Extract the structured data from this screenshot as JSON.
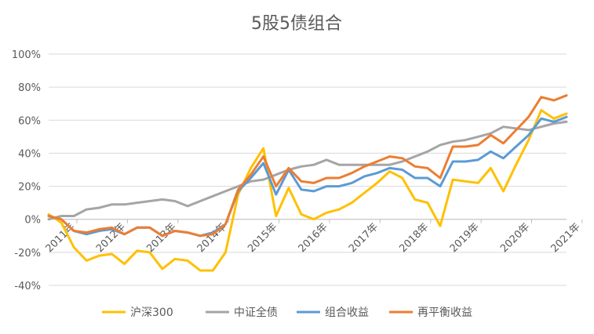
{
  "chart_data": {
    "type": "line",
    "title": "5股5债组合",
    "xlabel": "",
    "ylabel": "",
    "ylim": [
      -40,
      100
    ],
    "yticks": [
      -40,
      -20,
      0,
      20,
      40,
      60,
      80,
      100
    ],
    "ytick_labels": [
      "-40%",
      "-20%",
      "0%",
      "20%",
      "40%",
      "60%",
      "80%",
      "100%"
    ],
    "xtick_labels": [
      "2011年",
      "2012年",
      "2013年",
      "2014年",
      "2015年",
      "2016年",
      "2017年",
      "2018年",
      "2019年",
      "2020年",
      "2021年"
    ],
    "grid": "horizontal",
    "legend_position": "bottom",
    "colors": {
      "沪深300": "#FFC000",
      "中证全债": "#A5A5A5",
      "组合收益": "#5B9BD5",
      "再平衡收益": "#ED7D31"
    },
    "series": [
      {
        "name": "沪深300",
        "color": "#FFC000",
        "values": [
          3,
          -2,
          -17,
          -25,
          -22,
          -21,
          -27,
          -19,
          -20,
          -30,
          -24,
          -25,
          -31,
          -31,
          -20,
          15,
          31,
          43,
          2,
          19,
          3,
          0,
          4,
          6,
          10,
          16,
          22,
          29,
          25,
          12,
          10,
          -4,
          24,
          23,
          22,
          31,
          17,
          33,
          48,
          66,
          61,
          64
        ]
      },
      {
        "name": "中证全债",
        "color": "#A5A5A5",
        "values": [
          0,
          2,
          2,
          6,
          7,
          9,
          9,
          10,
          11,
          12,
          11,
          8,
          11,
          14,
          17,
          20,
          23,
          24,
          27,
          30,
          32,
          33,
          36,
          33,
          33,
          33,
          33,
          33,
          35,
          38,
          41,
          45,
          47,
          48,
          50,
          52,
          56,
          55,
          54,
          56,
          58,
          59
        ]
      },
      {
        "name": "组合收益",
        "color": "#5B9BD5",
        "values": [
          2,
          0,
          -7,
          -9,
          -7,
          -6,
          -9,
          -5,
          -5,
          -10,
          -7,
          -8,
          -10,
          -8,
          -3,
          17,
          25,
          34,
          15,
          30,
          18,
          17,
          20,
          20,
          22,
          26,
          28,
          31,
          30,
          25,
          25,
          20,
          35,
          35,
          36,
          41,
          37,
          44,
          51,
          61,
          59,
          62
        ]
      },
      {
        "name": "再平衡收益",
        "color": "#ED7D31",
        "values": [
          2,
          0,
          -7,
          -8,
          -6,
          -5,
          -9,
          -5,
          -5,
          -10,
          -7,
          -8,
          -10,
          -9,
          -3,
          18,
          27,
          38,
          20,
          31,
          23,
          22,
          25,
          25,
          28,
          32,
          35,
          38,
          37,
          32,
          31,
          25,
          44,
          44,
          45,
          51,
          46,
          54,
          62,
          74,
          72,
          75
        ]
      }
    ]
  }
}
